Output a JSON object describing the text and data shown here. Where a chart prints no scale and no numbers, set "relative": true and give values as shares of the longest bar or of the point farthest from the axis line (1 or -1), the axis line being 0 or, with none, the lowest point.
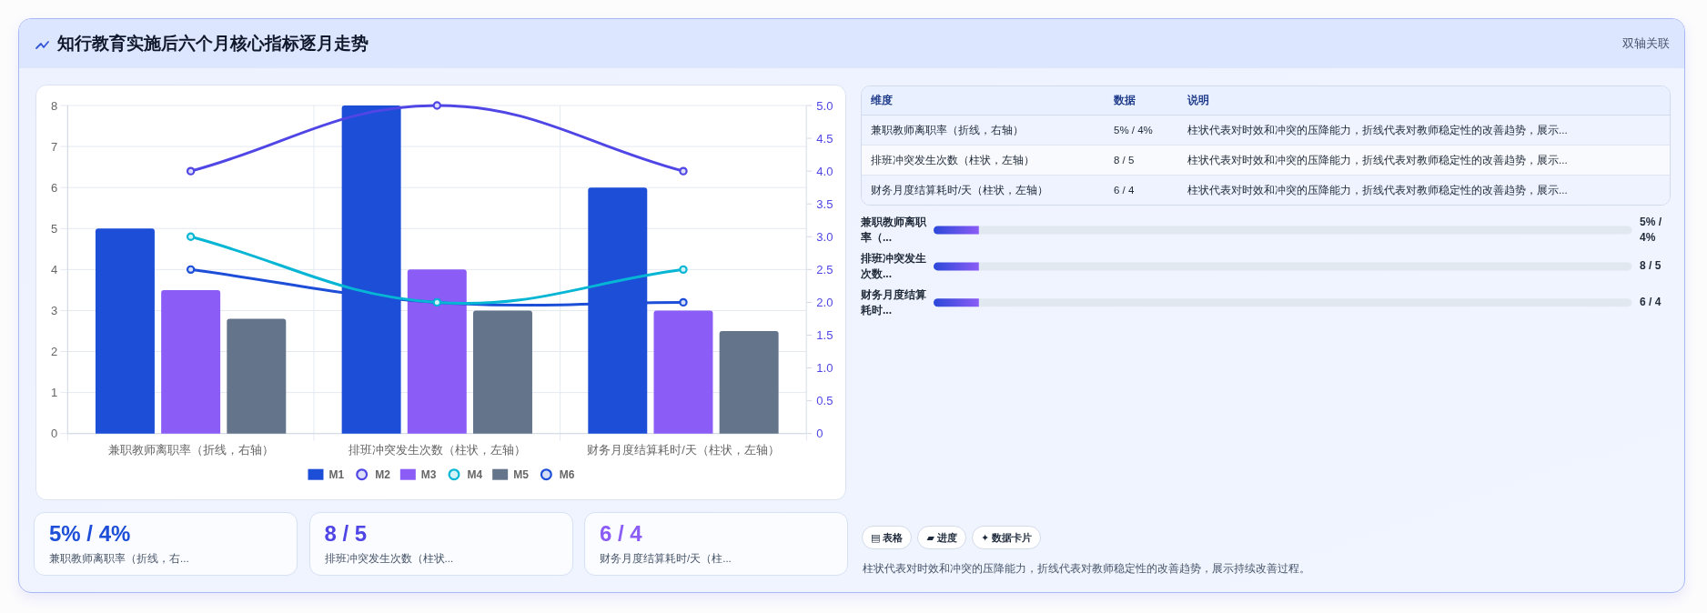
{
  "chart_data": [
    {
      "type": "other",
      "title": "知行教育实施后六个月核心指标逐月走势",
      "annotations": [
        "双轴关联"
      ]
    },
    {
      "type": "bar",
      "categories": [
        "兼职教师离职率（折线，右轴）",
        "排班冲突发生次数（柱状，左轴）",
        "财务月度结算耗时/天（柱状，左轴）"
      ],
      "series": [
        {
          "name": "M1",
          "type": "bar",
          "color": "#1d4ed8",
          "values": [
            5,
            8,
            6
          ]
        },
        {
          "name": "M2",
          "type": "line",
          "axis": "y2",
          "color": "#4f46e5",
          "values": [
            4.0,
            5.0,
            4.0
          ]
        },
        {
          "name": "M3",
          "type": "bar",
          "color": "#8b5cf6",
          "values": [
            3.5,
            4,
            3
          ]
        },
        {
          "name": "M4",
          "type": "line",
          "axis": "y2",
          "color": "#06b6d4",
          "values": [
            3.0,
            2.0,
            2.5
          ]
        },
        {
          "name": "M5",
          "type": "bar",
          "color": "#64748b",
          "values": [
            2.8,
            3,
            2.5
          ]
        },
        {
          "name": "M6",
          "type": "line",
          "axis": "y2",
          "color": "#1d4ed8",
          "values": [
            2.5,
            2.0,
            2.0
          ]
        }
      ],
      "ylim": [
        0,
        8
      ],
      "yticks": [
        0,
        1,
        2,
        3,
        4,
        5,
        6,
        7,
        8
      ],
      "y2lim": [
        0,
        5
      ],
      "y2ticks": [
        0,
        0.5,
        {
          "value": 1,
          "label": "1.0"
        },
        1.5,
        {
          "value": 2,
          "label": "2.0"
        },
        2.5,
        {
          "value": 3,
          "label": "3.0"
        },
        3.5,
        {
          "value": 4,
          "label": "4.0"
        },
        4.5,
        {
          "value": 5,
          "label": "5.0"
        }
      ],
      "grid": true,
      "legend": "bottom",
      "marker": "circle"
    },
    {
      "type": "other",
      "categories": [
        "维度",
        "数据",
        "说明"
      ],
      "annotations": [
        "兼职教师离职率（折线，右轴）",
        "5% / 4%",
        "柱状代表对时效和冲突的压降能力，折线代表对教师稳定性的改善趋势，展示...",
        "排班冲突发生次数（柱状，左轴）",
        "8 / 5",
        "柱状代表对时效和冲突的压降能力，折线代表对教师稳定性的改善趋势，展示...",
        "财务月度结算耗时/天（柱状，左轴）",
        "6 / 4",
        "柱状代表对时效和冲突的压降能力，折线代表对教师稳定性的改善趋势，展示..."
      ]
    },
    {
      "type": "bar",
      "orientation": "horizontal",
      "relative": true,
      "stacked": true,
      "categories": [
        "兼职教师离职率（...",
        "排班冲突发生次数...",
        "财务月度结算耗时..."
      ],
      "series": [
        {
          "color": "#5b52e7",
          "values": [
            0.065,
            0.065,
            0.065
          ]
        },
        {
          "color": "#e2e8f0",
          "values": [
            0.935,
            0.935,
            0.935
          ]
        }
      ],
      "annotations": [
        "5% / 4%",
        "8 / 5",
        "6 / 4"
      ]
    },
    {
      "type": "other",
      "annotations": [
        "5% / 4%",
        "兼职教师离职率（折线，右...",
        "8 / 5",
        "排班冲突发生次数（柱状...",
        "6 / 4",
        "财务月度结算耗时/天（柱..."
      ],
      "colors": [
        "#1d4ed8",
        "#4f46e5",
        "#8b5cf6"
      ]
    },
    {
      "type": "other",
      "categories": [
        "▤ 表格",
        "▰ 进度",
        "✦ 数据卡片"
      ],
      "annotations": [
        "柱状代表对时效和冲突的压降能力，折线代表对教师稳定性的改善趋势，展示持续改善过程。"
      ]
    }
  ]
}
